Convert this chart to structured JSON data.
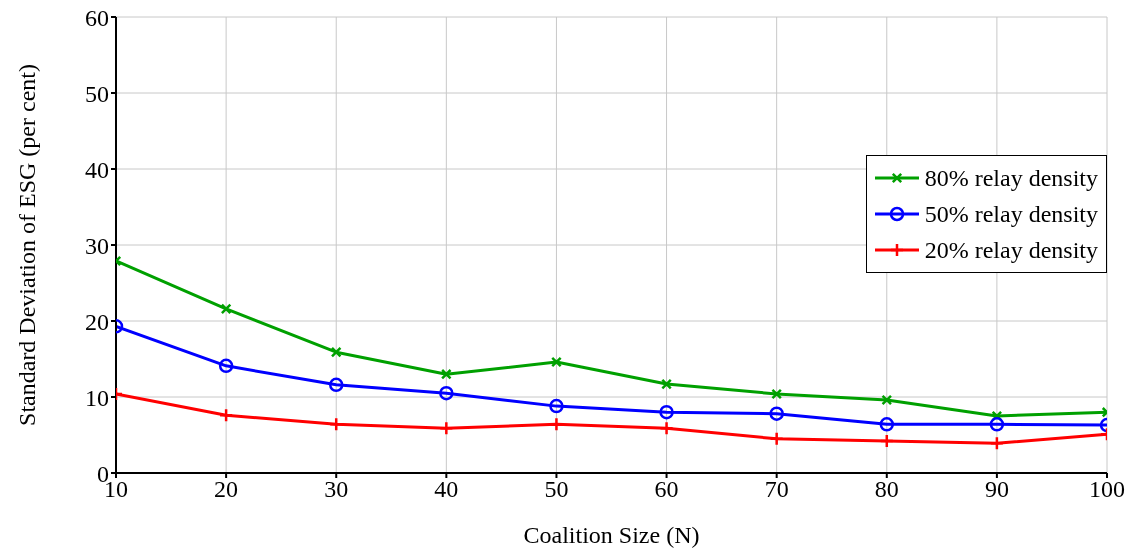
{
  "chart_data": {
    "type": "line",
    "xlabel": "Coalition Size (N)",
    "ylabel": "Standard Deviation of ESG (per cent)",
    "x": [
      10,
      20,
      30,
      40,
      50,
      60,
      70,
      80,
      90,
      100
    ],
    "xlim": [
      10,
      100
    ],
    "xticks": [
      10,
      20,
      30,
      40,
      50,
      60,
      70,
      80,
      90,
      100
    ],
    "ylim": [
      0,
      60
    ],
    "yticks": [
      0,
      10,
      20,
      30,
      40,
      50,
      60
    ],
    "grid": true,
    "legend": "right",
    "line_style": "solid",
    "series": [
      {
        "name": "80% relay density",
        "color": "#00a000",
        "marker": "x",
        "values": [
          27.9,
          21.6,
          15.9,
          13.0,
          14.6,
          11.7,
          10.4,
          9.6,
          7.5,
          8.0
        ]
      },
      {
        "name": "50% relay density",
        "color": "#0000ff",
        "marker": "circle",
        "values": [
          19.3,
          14.1,
          11.6,
          10.5,
          8.8,
          8.0,
          7.8,
          6.4,
          6.4,
          6.3
        ]
      },
      {
        "name": "20% relay density",
        "color": "#ff0000",
        "marker": "cross",
        "values": [
          10.4,
          7.6,
          6.4,
          5.9,
          6.4,
          5.9,
          4.5,
          4.2,
          3.9,
          5.1
        ]
      }
    ]
  }
}
